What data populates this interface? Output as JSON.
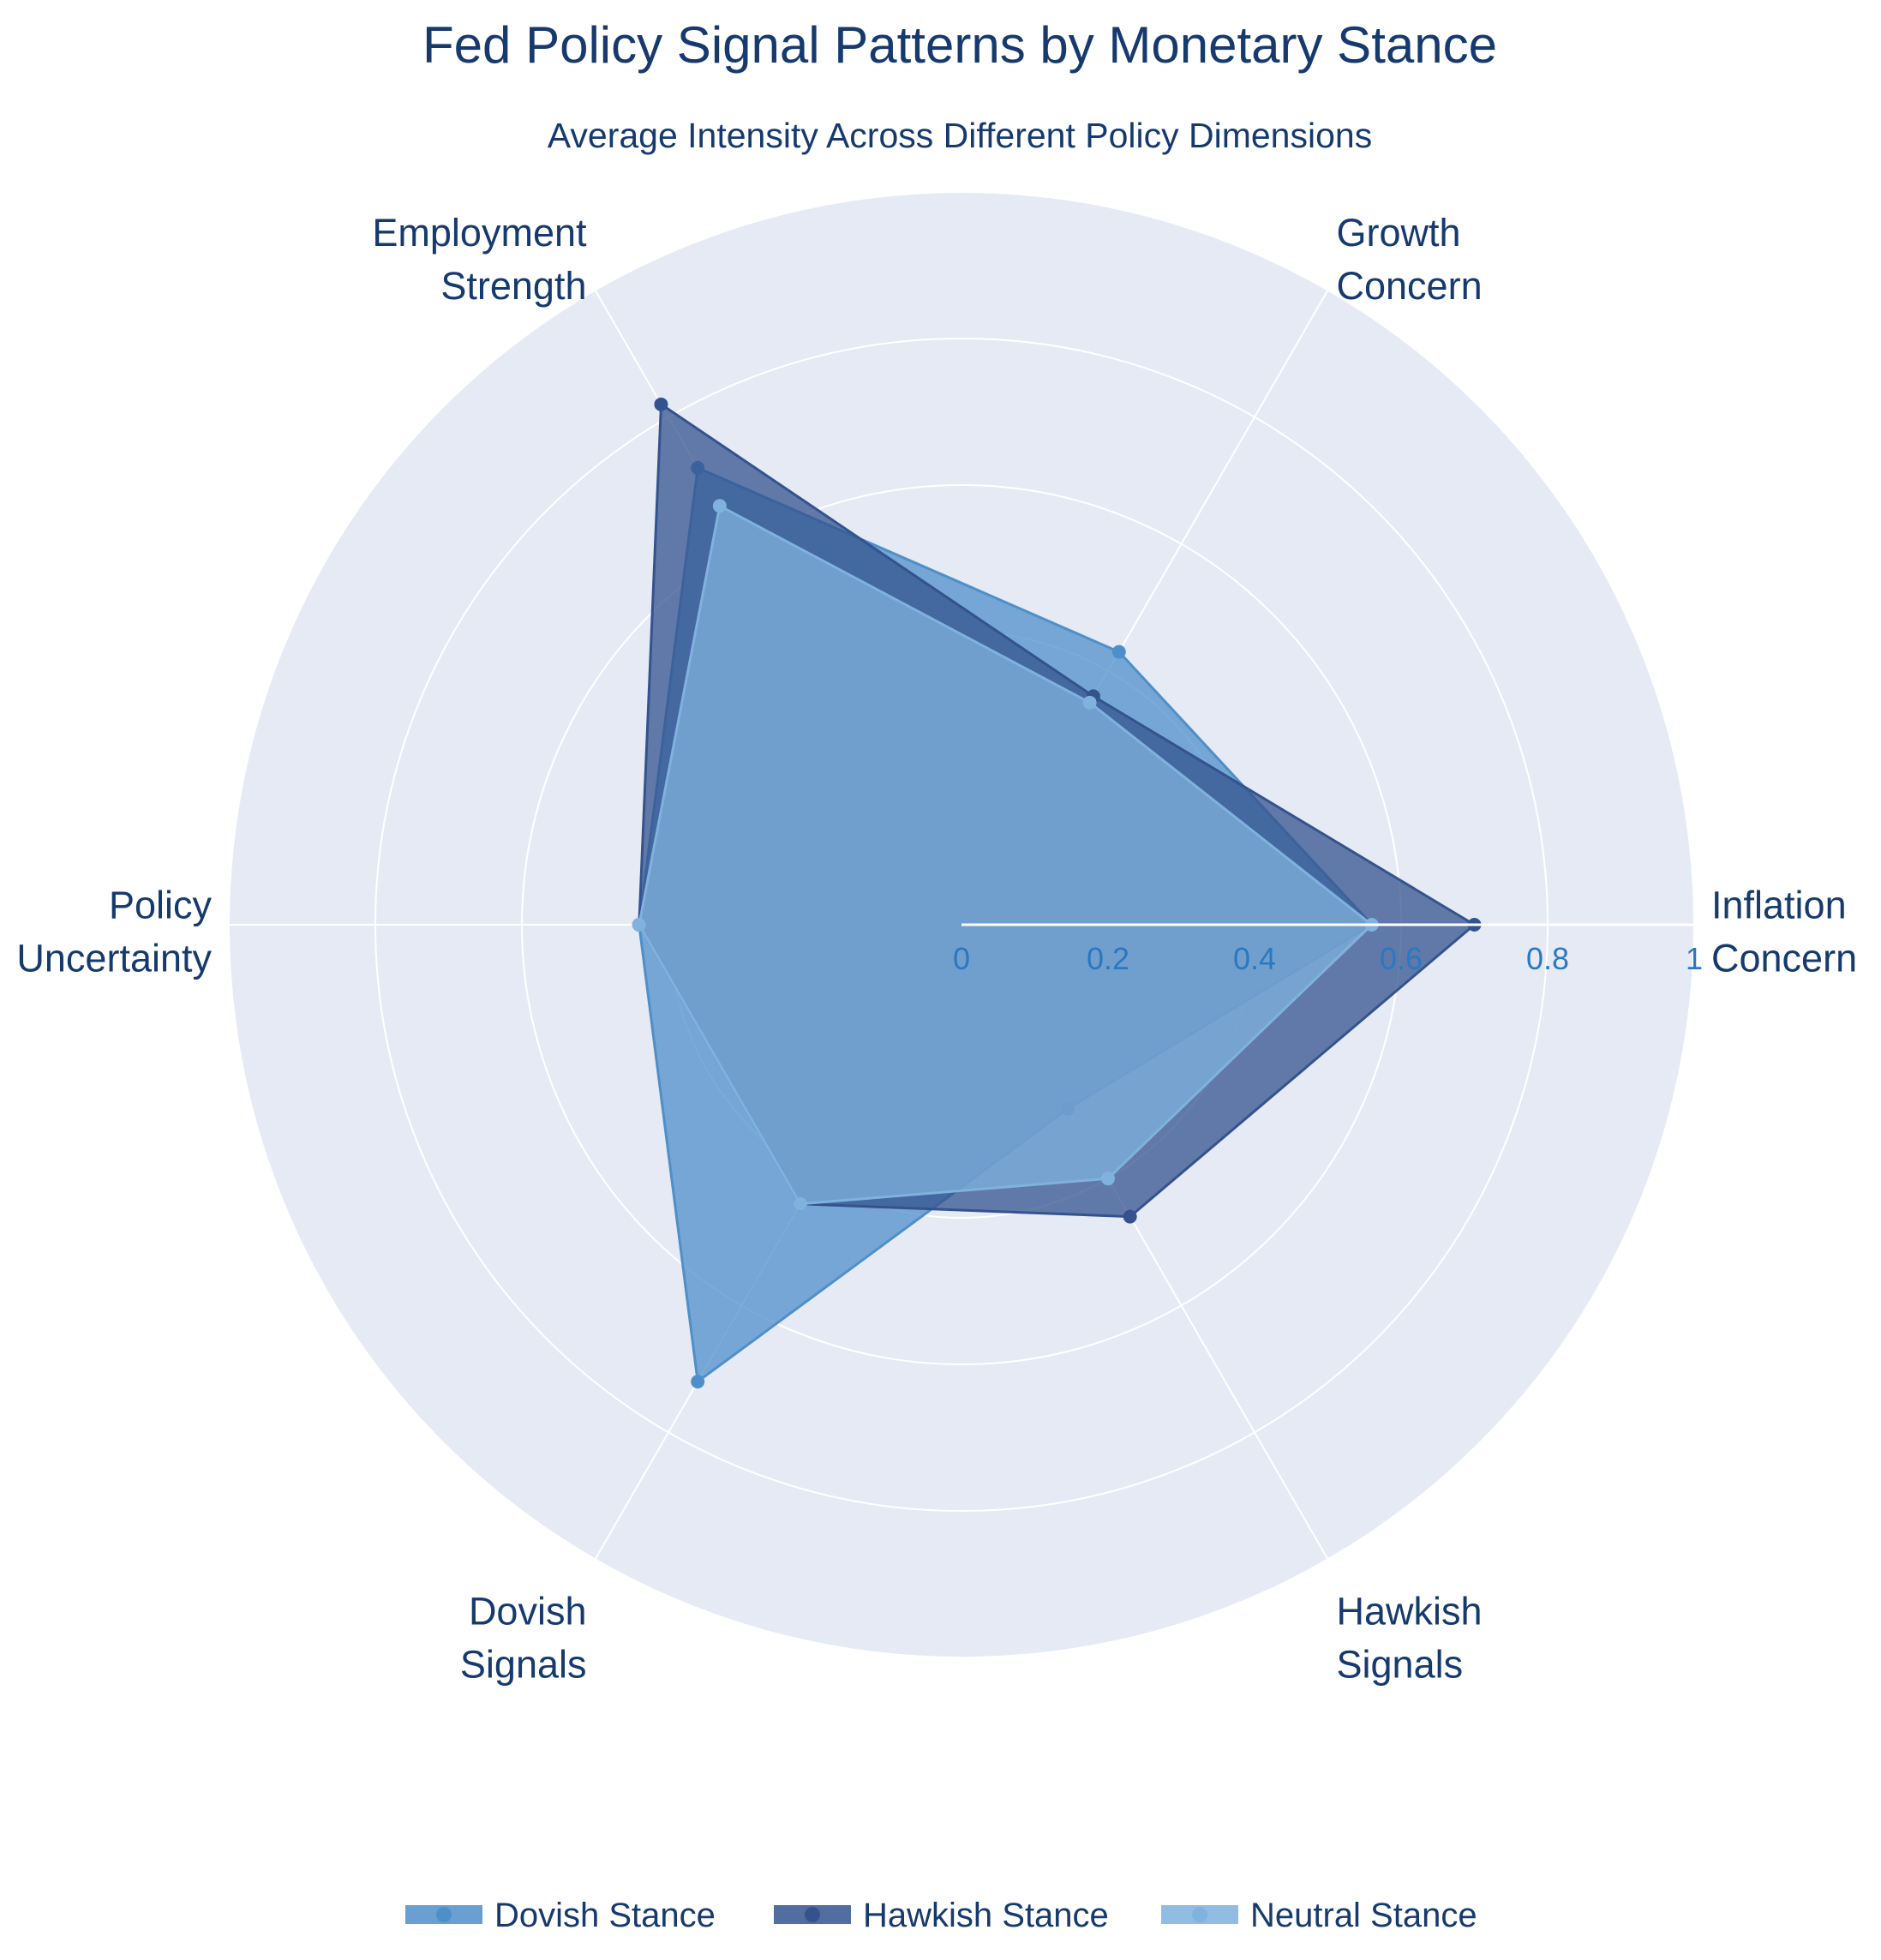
{
  "chart_data": {
    "type": "radar",
    "title": "Fed Policy Signal Patterns by Monetary Stance",
    "subtitle": "Average Intensity Across Different Policy Dimensions",
    "axes": [
      [
        "Inflation",
        "Concern"
      ],
      [
        "Growth",
        "Concern"
      ],
      [
        "Employment",
        "Strength"
      ],
      [
        "Policy",
        "Uncertainty"
      ],
      [
        "Dovish",
        "Signals"
      ],
      [
        "Hawkish",
        "Signals"
      ]
    ],
    "radial_range": [
      0,
      1
    ],
    "radial_ticks": [
      "0",
      "0.2",
      "0.4",
      "0.6",
      "0.8",
      "1"
    ],
    "series": [
      {
        "name": "Dovish Stance",
        "values": [
          0.56,
          0.43,
          0.72,
          0.44,
          0.72,
          0.29
        ],
        "color": "#4f8fc9"
      },
      {
        "name": "Hawkish Stance",
        "values": [
          0.7,
          0.36,
          0.82,
          0.44,
          0.44,
          0.46
        ],
        "color": "#34538e"
      },
      {
        "name": "Neutral Stance",
        "values": [
          0.56,
          0.35,
          0.66,
          0.44,
          0.44,
          0.4
        ],
        "color": "#7fb2dd"
      }
    ],
    "legend": "bottom-center",
    "colors": {
      "title": "#163a6e",
      "polar_background": "#e5eaf5",
      "grid": "#ffffff",
      "tick_label": "#2a78c2"
    }
  }
}
